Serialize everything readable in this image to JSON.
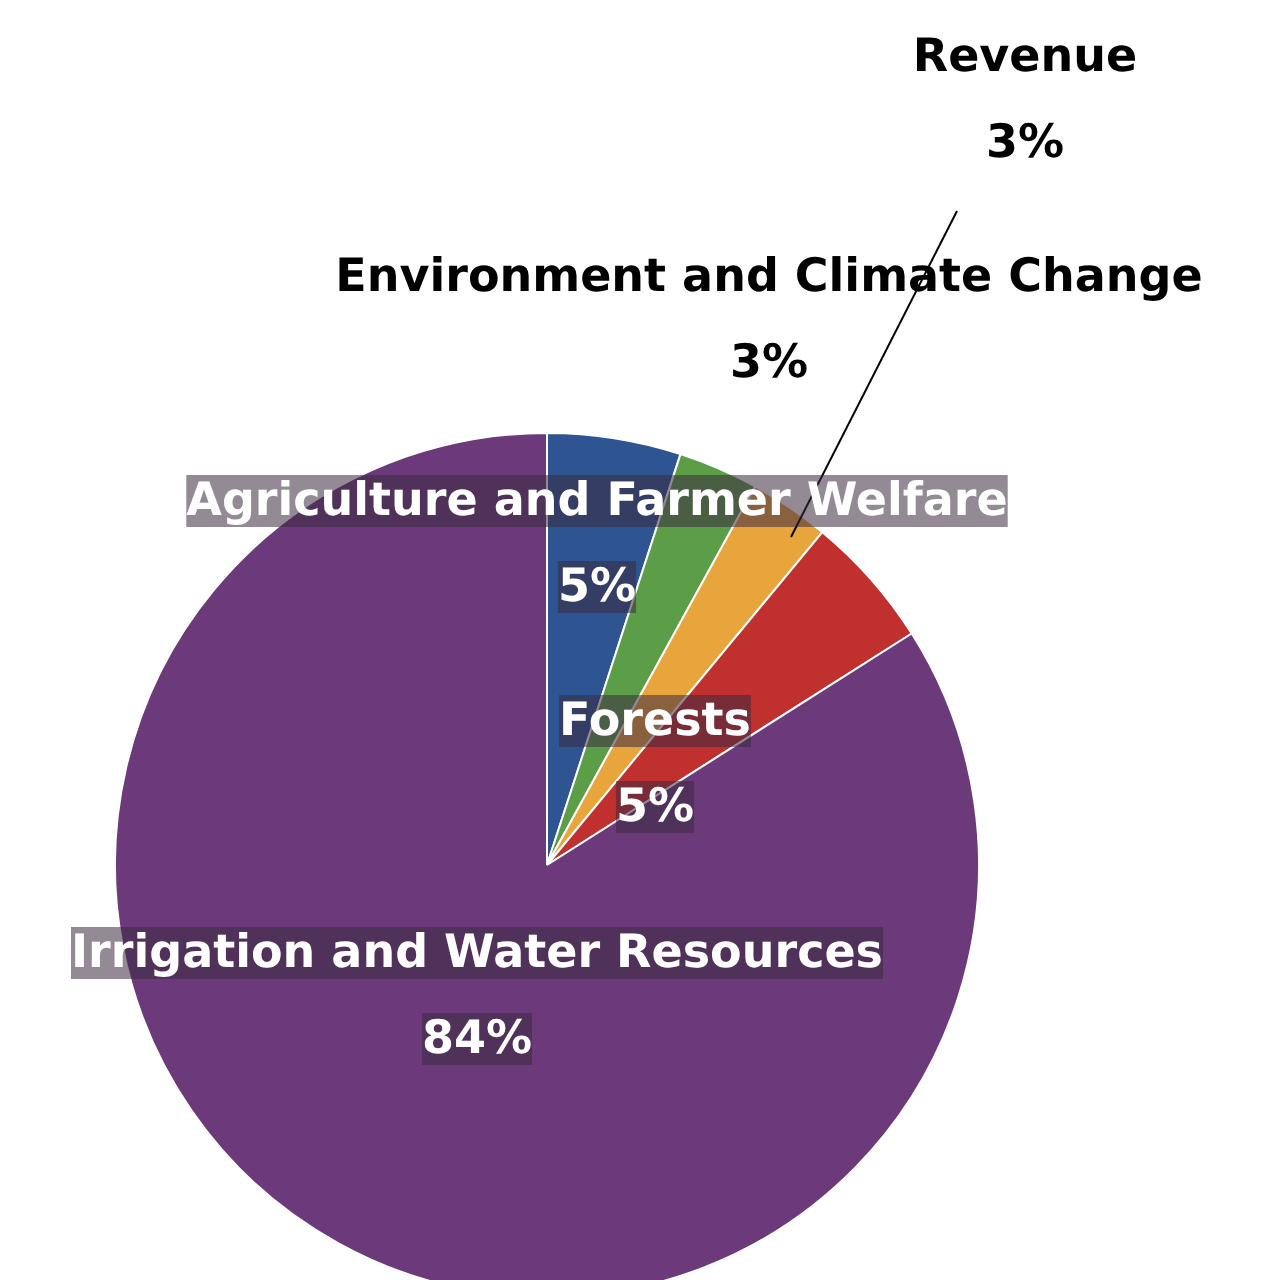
{
  "chart_data": {
    "type": "pie",
    "categories": [
      "Agriculture and Farmer Welfare",
      "Environment and Climate Change",
      "Revenue",
      "Forests",
      "Irrigation and Water Resources"
    ],
    "values": [
      5,
      3,
      3,
      5,
      84
    ],
    "value_labels": [
      "5%",
      "3%",
      "3%",
      "5%",
      "84%"
    ],
    "colors": [
      "#2e5591",
      "#5c9d48",
      "#e8a53c",
      "#c0302f",
      "#6c3a7a"
    ]
  }
}
